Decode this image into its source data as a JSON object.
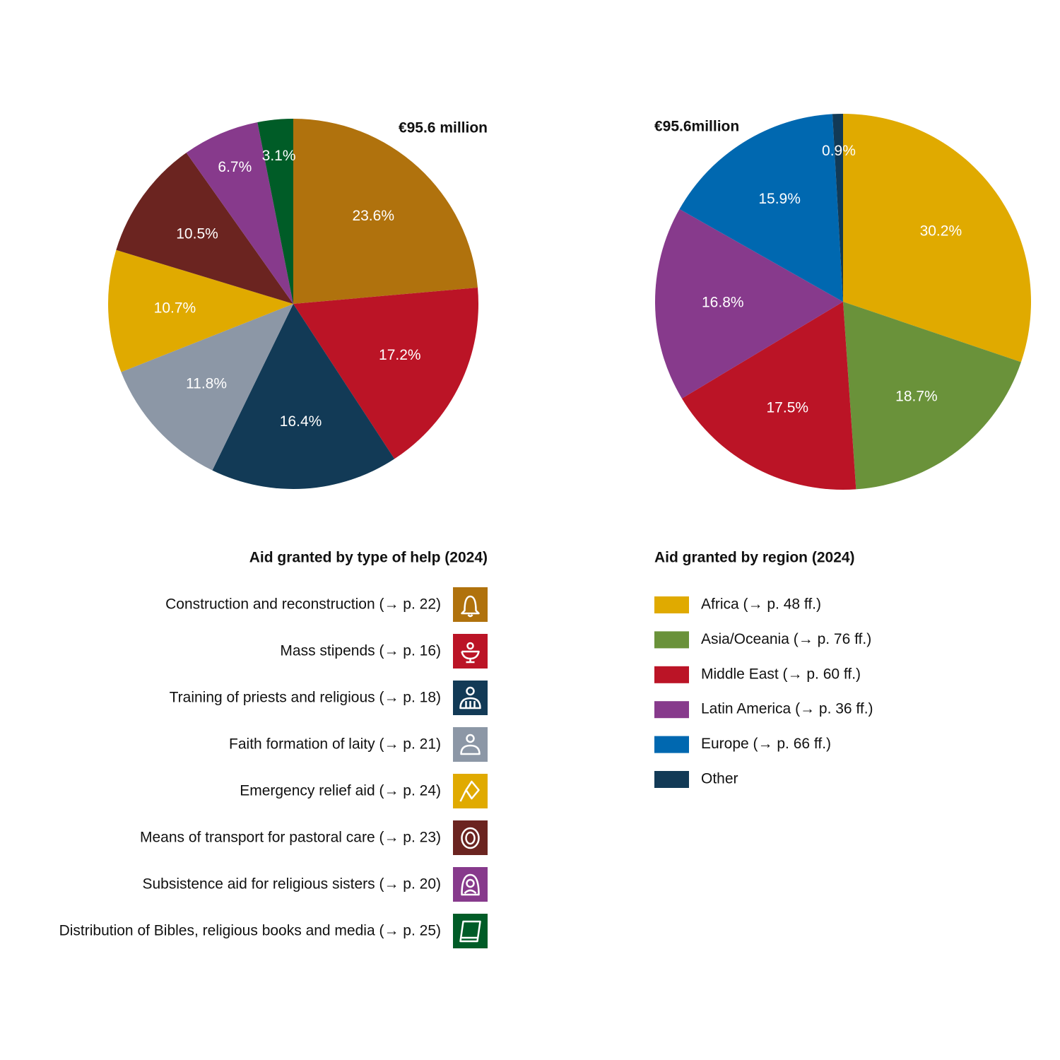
{
  "chart_data": [
    {
      "type": "pie",
      "title": "Aid granted by type of help (2024)",
      "annotation": "€95.6 million",
      "categories": [
        "Construction and reconstruction (→ p. 22)",
        "Mass stipends (→ p. 16)",
        "Training of priests and religious (→ p. 18)",
        "Faith formation of laity (→ p. 21)",
        "Emergency relief aid (→ p. 24)",
        "Means of transport for pastoral care (→ p. 23)",
        "Subsistence aid for religious sisters (→ p. 20)",
        "Distribution of Bibles, religious books and media (→ p. 25)"
      ],
      "values": [
        23.6,
        17.2,
        16.4,
        11.8,
        10.7,
        10.5,
        6.7,
        3.1
      ],
      "value_labels": [
        "23.6%",
        "17.2%",
        "16.4%",
        "11.8%",
        "10.7%",
        "10.5%",
        "6.7%",
        "3.1%"
      ],
      "colors": [
        "#b0720d",
        "#bb1426",
        "#123a56",
        "#8c97a6",
        "#e0aa00",
        "#6b2420",
        "#873a8c",
        "#005c27"
      ],
      "legend": "icon-right"
    },
    {
      "type": "pie",
      "title": "Aid granted by region (2024)",
      "annotation": "€95.6million",
      "categories": [
        "Africa (→ p. 48 ff.)",
        "Asia/Oceania (→ p. 76 ff.)",
        "Middle East (→ p. 60 ff.)",
        "Latin America (→ p. 36 ff.)",
        "Europe (→ p. 66 ff.)",
        "Other"
      ],
      "values": [
        30.2,
        18.7,
        17.5,
        16.8,
        15.9,
        0.9
      ],
      "value_labels": [
        "30.2%",
        "18.7%",
        "17.5%",
        "16.8%",
        "15.9%",
        "0.9%"
      ],
      "colors": [
        "#e0aa00",
        "#6a923a",
        "#bb1426",
        "#873a8c",
        "#0068b0",
        "#123a56"
      ],
      "legend": "swatch-left"
    }
  ]
}
